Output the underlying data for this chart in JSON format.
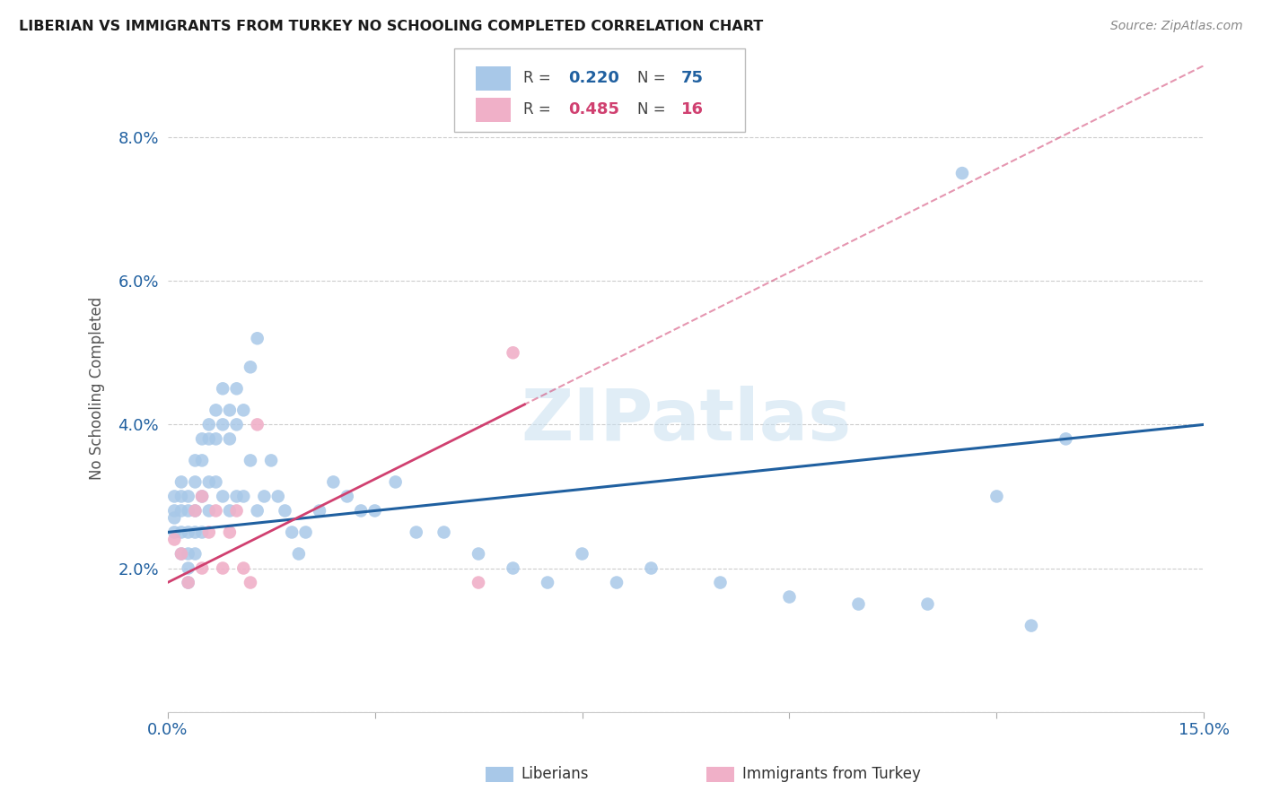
{
  "title": "LIBERIAN VS IMMIGRANTS FROM TURKEY NO SCHOOLING COMPLETED CORRELATION CHART",
  "source": "Source: ZipAtlas.com",
  "ylabel": "No Schooling Completed",
  "xlim": [
    0.0,
    0.15
  ],
  "ylim": [
    0.0,
    0.09
  ],
  "xticks": [
    0.0,
    0.03,
    0.06,
    0.09,
    0.12,
    0.15
  ],
  "yticks": [
    0.0,
    0.02,
    0.04,
    0.06,
    0.08
  ],
  "xticklabels": [
    "0.0%",
    "",
    "",
    "",
    "",
    "15.0%"
  ],
  "yticklabels": [
    "",
    "2.0%",
    "4.0%",
    "6.0%",
    "8.0%"
  ],
  "liberian_R": "0.220",
  "liberian_N": "75",
  "turkey_R": "0.485",
  "turkey_N": "16",
  "liberian_color": "#a8c8e8",
  "turkey_color": "#f0b0c8",
  "liberian_line_color": "#2060a0",
  "turkey_line_color": "#d04070",
  "watermark_color": "#c8dff0",
  "lib_x": [
    0.001,
    0.001,
    0.001,
    0.001,
    0.002,
    0.002,
    0.002,
    0.002,
    0.002,
    0.003,
    0.003,
    0.003,
    0.003,
    0.003,
    0.003,
    0.004,
    0.004,
    0.004,
    0.004,
    0.004,
    0.005,
    0.005,
    0.005,
    0.005,
    0.006,
    0.006,
    0.006,
    0.006,
    0.007,
    0.007,
    0.007,
    0.008,
    0.008,
    0.008,
    0.009,
    0.009,
    0.009,
    0.01,
    0.01,
    0.01,
    0.011,
    0.011,
    0.012,
    0.012,
    0.013,
    0.013,
    0.014,
    0.015,
    0.016,
    0.017,
    0.018,
    0.019,
    0.02,
    0.022,
    0.024,
    0.026,
    0.028,
    0.03,
    0.033,
    0.036,
    0.04,
    0.045,
    0.05,
    0.055,
    0.06,
    0.065,
    0.07,
    0.08,
    0.09,
    0.1,
    0.11,
    0.115,
    0.12,
    0.125,
    0.13
  ],
  "lib_y": [
    0.028,
    0.03,
    0.025,
    0.027,
    0.03,
    0.028,
    0.025,
    0.022,
    0.032,
    0.03,
    0.028,
    0.025,
    0.022,
    0.02,
    0.018,
    0.035,
    0.032,
    0.028,
    0.025,
    0.022,
    0.038,
    0.035,
    0.03,
    0.025,
    0.04,
    0.038,
    0.032,
    0.028,
    0.042,
    0.038,
    0.032,
    0.045,
    0.04,
    0.03,
    0.042,
    0.038,
    0.028,
    0.045,
    0.04,
    0.03,
    0.042,
    0.03,
    0.048,
    0.035,
    0.052,
    0.028,
    0.03,
    0.035,
    0.03,
    0.028,
    0.025,
    0.022,
    0.025,
    0.028,
    0.032,
    0.03,
    0.028,
    0.028,
    0.032,
    0.025,
    0.025,
    0.022,
    0.02,
    0.018,
    0.022,
    0.018,
    0.02,
    0.018,
    0.016,
    0.015,
    0.015,
    0.075,
    0.03,
    0.012,
    0.038
  ],
  "tur_x": [
    0.001,
    0.002,
    0.003,
    0.004,
    0.005,
    0.005,
    0.006,
    0.007,
    0.008,
    0.009,
    0.01,
    0.011,
    0.012,
    0.013,
    0.045,
    0.05
  ],
  "tur_y": [
    0.024,
    0.022,
    0.018,
    0.028,
    0.03,
    0.02,
    0.025,
    0.028,
    0.02,
    0.025,
    0.028,
    0.02,
    0.018,
    0.04,
    0.018,
    0.05
  ]
}
